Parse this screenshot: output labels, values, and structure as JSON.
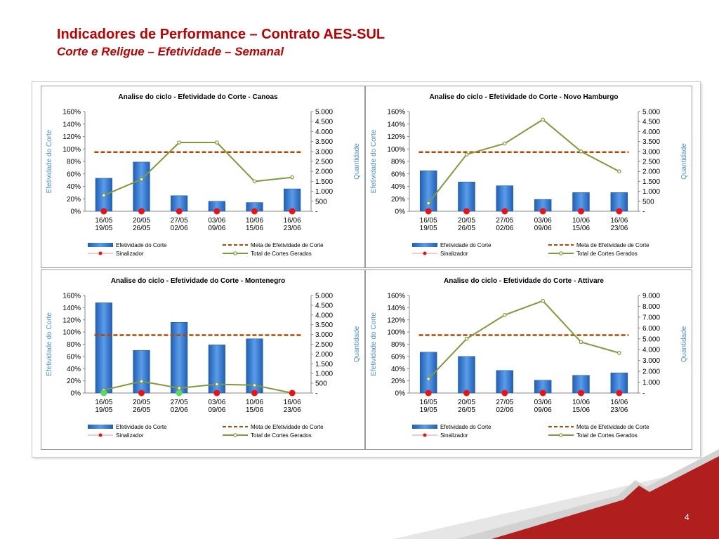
{
  "header": {
    "title": "Indicadores de Performance – Contrato AES-SUL",
    "subtitle": "Corte e Religue – Efetividade – Semanal"
  },
  "page_number": "4",
  "colors": {
    "bar": "#2e6fc7",
    "meta": "#b34700",
    "total": "#7f9a3a",
    "sinal_red": "#ee1111",
    "sinal_green": "#55dd55",
    "title_red": "#c00000",
    "axis_label": "#4a90d9"
  },
  "legend": {
    "efetividade": "Efetividade do Corte",
    "meta": "Meta de Efetividade de Corte",
    "sinalizador": "Sinalizador",
    "total": "Total de Cortes Gerados"
  },
  "axis_labels": {
    "left": "Efetividade do Corte",
    "right": "Quantidade"
  },
  "chart_data": [
    {
      "type": "bar",
      "title": "Analise do ciclo -  Efetividade do Corte - Canoas",
      "categories": [
        [
          "16/05",
          "19/05"
        ],
        [
          "20/05",
          "26/05"
        ],
        [
          "27/05",
          "02/06"
        ],
        [
          "03/06",
          "09/06"
        ],
        [
          "10/06",
          "15/06"
        ],
        [
          "16/06",
          "23/06"
        ]
      ],
      "ylim": [
        0,
        1.6
      ],
      "y_ticks": [
        "0%",
        "20%",
        "40%",
        "60%",
        "80%",
        "100%",
        "120%",
        "140%",
        "160%"
      ],
      "y2lim": [
        0,
        5000
      ],
      "y2_ticks": [
        "-",
        "500",
        "1.000",
        "1.500",
        "2.000",
        "2.500",
        "3.000",
        "3.500",
        "4.000",
        "4.500",
        "5.000"
      ],
      "series": [
        {
          "name": "Efetividade do Corte",
          "values": [
            0.53,
            0.79,
            0.25,
            0.16,
            0.14,
            0.36
          ]
        },
        {
          "name": "Meta de Efetividade de Corte",
          "values": [
            0.95,
            0.95,
            0.95,
            0.95,
            0.95,
            0.95
          ]
        },
        {
          "name": "Total de Cortes Gerados",
          "values": [
            800,
            1600,
            3450,
            3450,
            1500,
            1700
          ]
        },
        {
          "name": "Sinalizador",
          "colors": [
            "red",
            "red",
            "red",
            "red",
            "red",
            "red"
          ]
        }
      ]
    },
    {
      "type": "bar",
      "title": "Analise do ciclo -  Efetividade do Corte - Novo Hamburgo",
      "categories": [
        [
          "16/05",
          "19/05"
        ],
        [
          "20/05",
          "26/05"
        ],
        [
          "27/05",
          "02/06"
        ],
        [
          "03/06",
          "09/06"
        ],
        [
          "10/06",
          "15/06"
        ],
        [
          "16/06",
          "23/06"
        ]
      ],
      "ylim": [
        0,
        1.6
      ],
      "y_ticks": [
        "0%",
        "20%",
        "40%",
        "60%",
        "80%",
        "100%",
        "120%",
        "140%",
        "160%"
      ],
      "y2lim": [
        0,
        5000
      ],
      "y2_ticks": [
        "-",
        "500",
        "1.000",
        "1.500",
        "2.000",
        "2.500",
        "3.000",
        "3.500",
        "4.000",
        "4.500",
        "5.000"
      ],
      "series": [
        {
          "name": "Efetividade do Corte",
          "values": [
            0.65,
            0.47,
            0.41,
            0.19,
            0.3,
            0.3
          ]
        },
        {
          "name": "Meta de Efetividade de Corte",
          "values": [
            0.95,
            0.95,
            0.95,
            0.95,
            0.95,
            0.95
          ]
        },
        {
          "name": "Total de Cortes Gerados",
          "values": [
            400,
            2850,
            3400,
            4600,
            3000,
            2000
          ]
        },
        {
          "name": "Sinalizador",
          "colors": [
            "red",
            "red",
            "red",
            "red",
            "red",
            "red"
          ]
        }
      ]
    },
    {
      "type": "bar",
      "title": "Analise do ciclo -  Efetividade do Corte - Montenegro",
      "categories": [
        [
          "16/05",
          "19/05"
        ],
        [
          "20/05",
          "26/05"
        ],
        [
          "27/05",
          "02/06"
        ],
        [
          "03/06",
          "09/06"
        ],
        [
          "10/06",
          "15/06"
        ],
        [
          "16/06",
          "23/06"
        ]
      ],
      "ylim": [
        0,
        1.6
      ],
      "y_ticks": [
        "0%",
        "20%",
        "40%",
        "60%",
        "80%",
        "100%",
        "120%",
        "140%",
        "160%"
      ],
      "y2lim": [
        0,
        5000
      ],
      "y2_ticks": [
        "-",
        "500",
        "1.000",
        "1.500",
        "2.000",
        "2.500",
        "3.000",
        "3.500",
        "4.000",
        "4.500",
        "5.000"
      ],
      "series": [
        {
          "name": "Efetividade do Corte",
          "values": [
            1.48,
            0.7,
            1.16,
            0.79,
            0.89,
            0.0
          ]
        },
        {
          "name": "Meta de Efetividade de Corte",
          "values": [
            0.95,
            0.95,
            0.95,
            0.95,
            0.95,
            0.95
          ]
        },
        {
          "name": "Total de Cortes Gerados",
          "values": [
            150,
            600,
            250,
            450,
            400,
            0
          ]
        },
        {
          "name": "Sinalizador",
          "colors": [
            "green",
            "red",
            "green",
            "red",
            "red",
            "red"
          ]
        }
      ]
    },
    {
      "type": "bar",
      "title": "Analise do ciclo -  Efetividade do Corte - Attivare",
      "categories": [
        [
          "16/05",
          "19/05"
        ],
        [
          "20/05",
          "26/05"
        ],
        [
          "27/05",
          "02/06"
        ],
        [
          "03/06",
          "09/06"
        ],
        [
          "10/06",
          "15/06"
        ],
        [
          "16/06",
          "23/06"
        ]
      ],
      "ylim": [
        0,
        1.6
      ],
      "y_ticks": [
        "0%",
        "20%",
        "40%",
        "60%",
        "80%",
        "100%",
        "120%",
        "140%",
        "160%"
      ],
      "y2lim": [
        0,
        9000
      ],
      "y2_ticks": [
        "-",
        "1.000",
        "2.000",
        "3.000",
        "4.000",
        "5.000",
        "6.000",
        "7.000",
        "8.000",
        "9.000"
      ],
      "series": [
        {
          "name": "Efetividade do Corte",
          "values": [
            0.67,
            0.6,
            0.37,
            0.21,
            0.29,
            0.33
          ]
        },
        {
          "name": "Meta de Efetividade de Corte",
          "values": [
            0.95,
            0.95,
            0.95,
            0.95,
            0.95,
            0.95
          ]
        },
        {
          "name": "Total de Cortes Gerados",
          "values": [
            1300,
            5000,
            7200,
            8500,
            4700,
            3700
          ]
        },
        {
          "name": "Sinalizador",
          "colors": [
            "red",
            "red",
            "red",
            "red",
            "red",
            "red"
          ]
        }
      ]
    }
  ]
}
